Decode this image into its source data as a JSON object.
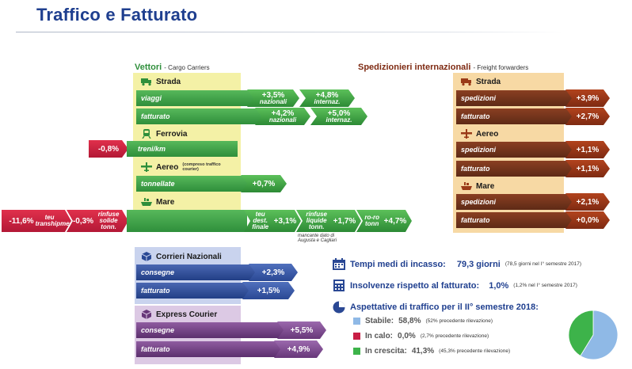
{
  "title": "Traffico e Fatturato",
  "vettori": {
    "title": "Vettori",
    "subtitle": "- Cargo Carriers",
    "strada": {
      "label": "Strada",
      "viaggi": {
        "label": "viaggi",
        "naz": "+3,5%",
        "naz_sub": "nazionali",
        "int": "+4,8%",
        "int_sub": "internaz."
      },
      "fatturato": {
        "label": "fatturato",
        "naz": "+4,2%",
        "naz_sub": "nazionali",
        "int": "+5,0%",
        "int_sub": "internaz."
      }
    },
    "ferrovia": {
      "label": "Ferrovia",
      "row_label": "treni/km",
      "value": "-0,8%"
    },
    "aereo": {
      "label": "Aereo",
      "note": "(compreso traffico courier)",
      "row_label": "tonnellate",
      "value": "+0,7%"
    },
    "mare": {
      "label": "Mare",
      "left": [
        {
          "value": "-11,6%",
          "label": "teu transhipment"
        },
        {
          "value": "-0,3%",
          "label": "rinfuse solide tonn."
        }
      ],
      "right": [
        {
          "label": "teu dest. finale",
          "value": "+3,1%"
        },
        {
          "label": "rinfuse liquide tonn.",
          "value": "+1,7%"
        },
        {
          "label": "ro-ro tonn",
          "value": "+4,7%"
        }
      ],
      "note": "mancante dato di Augusta e Cagliari"
    }
  },
  "spedizionieri": {
    "title": "Spedizionieri internazionali",
    "subtitle": "- Freight forwarders",
    "groups": [
      {
        "label": "Strada",
        "rows": [
          {
            "label": "spedizioni",
            "value": "+3,9%"
          },
          {
            "label": "fatturato",
            "value": "+2,7%"
          }
        ]
      },
      {
        "label": "Aereo",
        "rows": [
          {
            "label": "spedizioni",
            "value": "+1,1%"
          },
          {
            "label": "fatturato",
            "value": "+1,1%"
          }
        ]
      },
      {
        "label": "Mare",
        "rows": [
          {
            "label": "spedizioni",
            "value": "+2,1%"
          },
          {
            "label": "fatturato",
            "value": "+0,0%"
          }
        ]
      }
    ]
  },
  "corrieri": {
    "title": "Corrieri Nazionali",
    "rows": [
      {
        "label": "consegne",
        "value": "+2,3%"
      },
      {
        "label": "fatturato",
        "value": "+1,5%"
      }
    ]
  },
  "express": {
    "title": "Express Courier",
    "rows": [
      {
        "label": "consegne",
        "value": "+5,5%"
      },
      {
        "label": "fatturato",
        "value": "+4,9%"
      }
    ]
  },
  "info": {
    "incasso": {
      "label": "Tempi medi di incasso:",
      "value": "79,3 giorni",
      "note": "(78,5 giorni nel I° semestre 2017)"
    },
    "insolvenze": {
      "label": "Insolvenze rispetto al fatturato:",
      "value": "1,0%",
      "note": "(1,2% nel I° semestre 2017)"
    },
    "aspettative": {
      "label": "Aspettative di traffico per il II° semestre 2018:",
      "items": [
        {
          "label": "Stabile:",
          "value": "58,8%",
          "note": "(52% precedente rilevazione)",
          "color": "#8fb9e6"
        },
        {
          "label": "In calo:",
          "value": "0,0%",
          "note": "(2,7% precedente rilevazione)",
          "color": "#c81e45"
        },
        {
          "label": "In crescita:",
          "value": "41,3%",
          "note": "(45,3% precedente rilevazione)",
          "color": "#3db34a"
        }
      ]
    }
  },
  "colors": {
    "title": "#1f3f8f",
    "green": "#2f8f3b",
    "red": "#c81e45",
    "brown": "#7e2a12",
    "blue": "#223f86",
    "purple": "#5c2f6e"
  },
  "chart_data": {
    "type": "pie",
    "categories": [
      "Stabile",
      "In calo",
      "In crescita"
    ],
    "values": [
      58.8,
      0.0,
      41.3
    ]
  }
}
